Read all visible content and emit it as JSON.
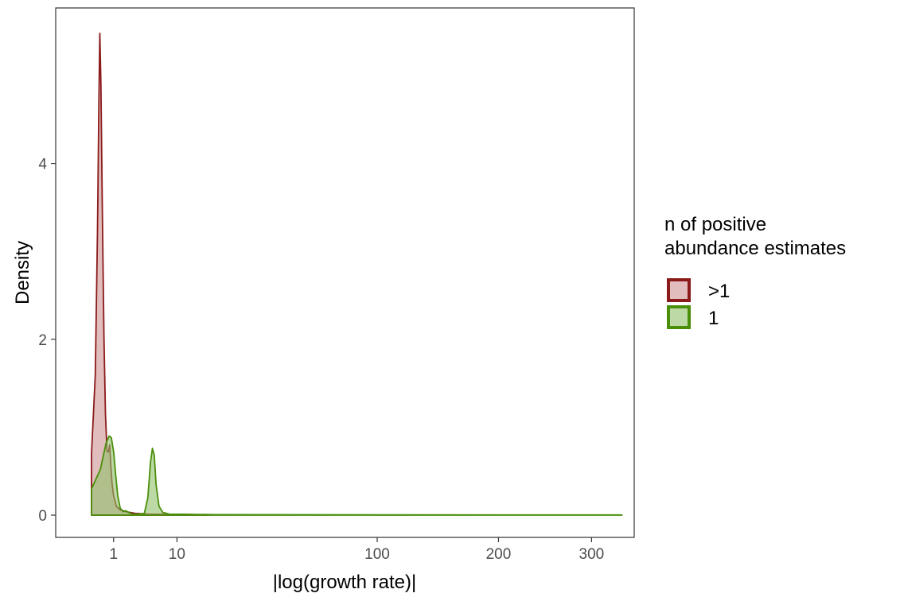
{
  "chart_data": {
    "type": "area",
    "title": "",
    "xlabel": "|log(growth rate)|",
    "ylabel": "Density",
    "x_ticks": [
      1,
      10,
      100,
      200,
      300
    ],
    "x_tick_labels": [
      "1",
      "10",
      "100",
      "200",
      "300"
    ],
    "y_ticks": [
      0,
      2,
      4
    ],
    "y_tick_labels": [
      "0",
      "2",
      "4"
    ],
    "ylim": [
      -0.25,
      5.85
    ],
    "grid": false,
    "legend": {
      "title": "n of positive abundance estimates",
      "title_lines": [
        "n of positive",
        "abundance estimates"
      ],
      "position": "right"
    },
    "series": [
      {
        "name": ">1",
        "line_color": "#8b1a1a",
        "fill_color": "#c47b7b",
        "fill_opacity": 0.5,
        "points": [
          [
            0.06,
            0
          ],
          [
            0.06,
            0.7
          ],
          [
            0.14,
            1.6
          ],
          [
            0.2,
            3.2
          ],
          [
            0.25,
            4.8
          ],
          [
            0.28,
            5.48
          ],
          [
            0.32,
            4.9
          ],
          [
            0.38,
            3.4
          ],
          [
            0.45,
            2.0
          ],
          [
            0.52,
            1.15
          ],
          [
            0.6,
            0.72
          ],
          [
            0.68,
            0.72
          ],
          [
            0.75,
            0.8
          ],
          [
            0.82,
            0.55
          ],
          [
            0.9,
            0.35
          ],
          [
            1.0,
            0.22
          ],
          [
            1.2,
            0.1
          ],
          [
            1.5,
            0.06
          ],
          [
            2.0,
            0.04
          ],
          [
            3.0,
            0.02
          ],
          [
            5.0,
            0.01
          ],
          [
            8.0,
            0.01
          ],
          [
            12.0,
            0.005
          ],
          [
            17.0,
            0.003
          ],
          [
            18.0,
            0
          ],
          [
            0.06,
            0
          ]
        ]
      },
      {
        "name": "1",
        "line_color": "#4a8f0a",
        "fill_color": "#8fc06a",
        "fill_opacity": 0.6,
        "points": [
          [
            0.06,
            0
          ],
          [
            0.06,
            0.3
          ],
          [
            0.3,
            0.52
          ],
          [
            0.55,
            0.82
          ],
          [
            0.72,
            0.9
          ],
          [
            0.85,
            0.88
          ],
          [
            1.0,
            0.72
          ],
          [
            1.15,
            0.45
          ],
          [
            1.3,
            0.22
          ],
          [
            1.5,
            0.08
          ],
          [
            1.75,
            0.04
          ],
          [
            2.0,
            0.05
          ],
          [
            2.3,
            0.03
          ],
          [
            2.7,
            0.01
          ],
          [
            3.5,
            0.01
          ],
          [
            4.2,
            0.02
          ],
          [
            4.7,
            0.2
          ],
          [
            5.1,
            0.6
          ],
          [
            5.4,
            0.76
          ],
          [
            5.7,
            0.68
          ],
          [
            6.0,
            0.35
          ],
          [
            6.5,
            0.1
          ],
          [
            7.2,
            0.03
          ],
          [
            8.5,
            0.01
          ],
          [
            12.0,
            0.01
          ],
          [
            20.0,
            0.005
          ],
          [
            100.0,
            0.003
          ],
          [
            200.0,
            0.002
          ],
          [
            337.0,
            0.002
          ],
          [
            337.0,
            0
          ],
          [
            0.06,
            0
          ]
        ]
      }
    ]
  }
}
